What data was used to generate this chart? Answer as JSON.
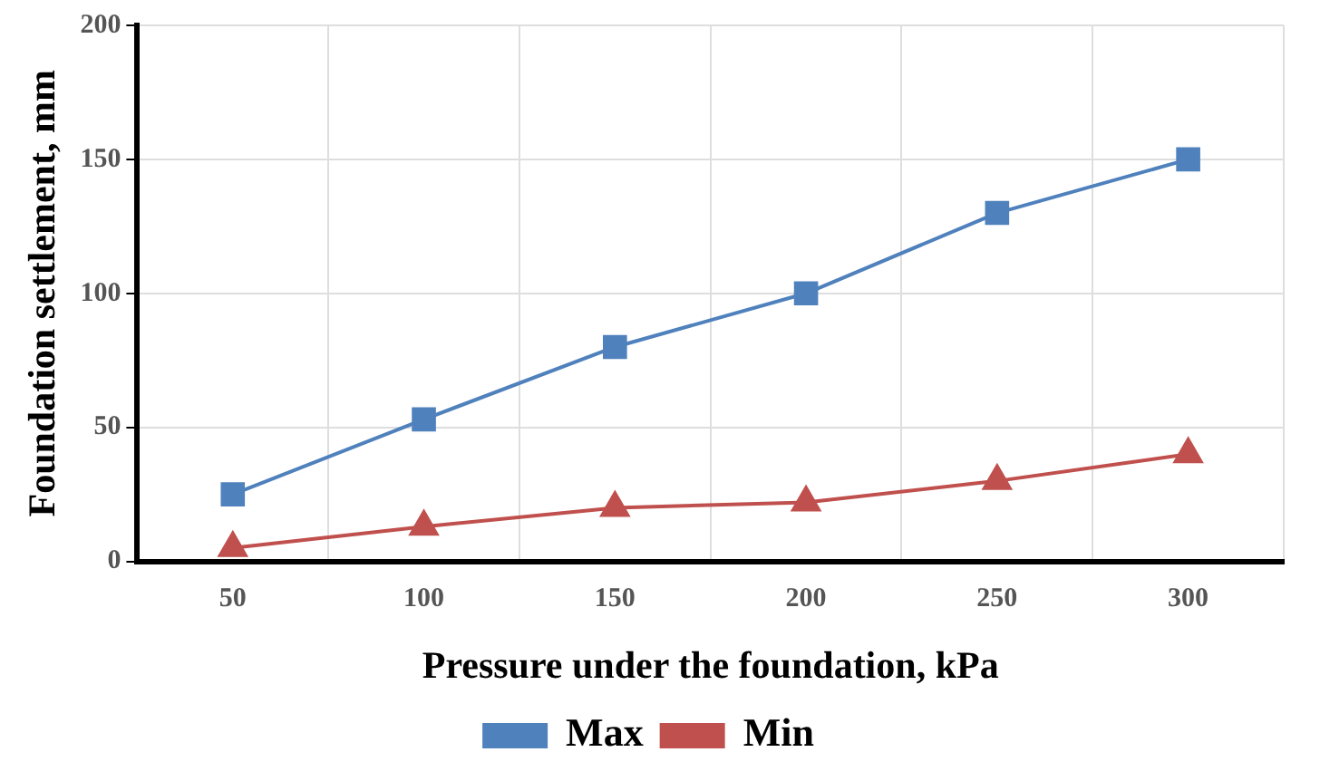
{
  "chart_data": {
    "type": "line",
    "xlabel": "Pressure under the foundation, kPa",
    "ylabel": "Foundation settlement, mm",
    "categories": [
      "50",
      "100",
      "150",
      "200",
      "250",
      "300"
    ],
    "series": [
      {
        "name": "Max",
        "color": "#4f81bd",
        "marker": "square",
        "values": [
          25,
          53,
          80,
          100,
          130,
          150
        ]
      },
      {
        "name": "Min",
        "color": "#c0504d",
        "marker": "triangle",
        "values": [
          5,
          13,
          20,
          22,
          30,
          40
        ]
      }
    ],
    "ylim": [
      0,
      200
    ],
    "yticks": [
      0,
      50,
      100,
      150,
      200
    ],
    "grid": true,
    "legend": "bottom"
  }
}
